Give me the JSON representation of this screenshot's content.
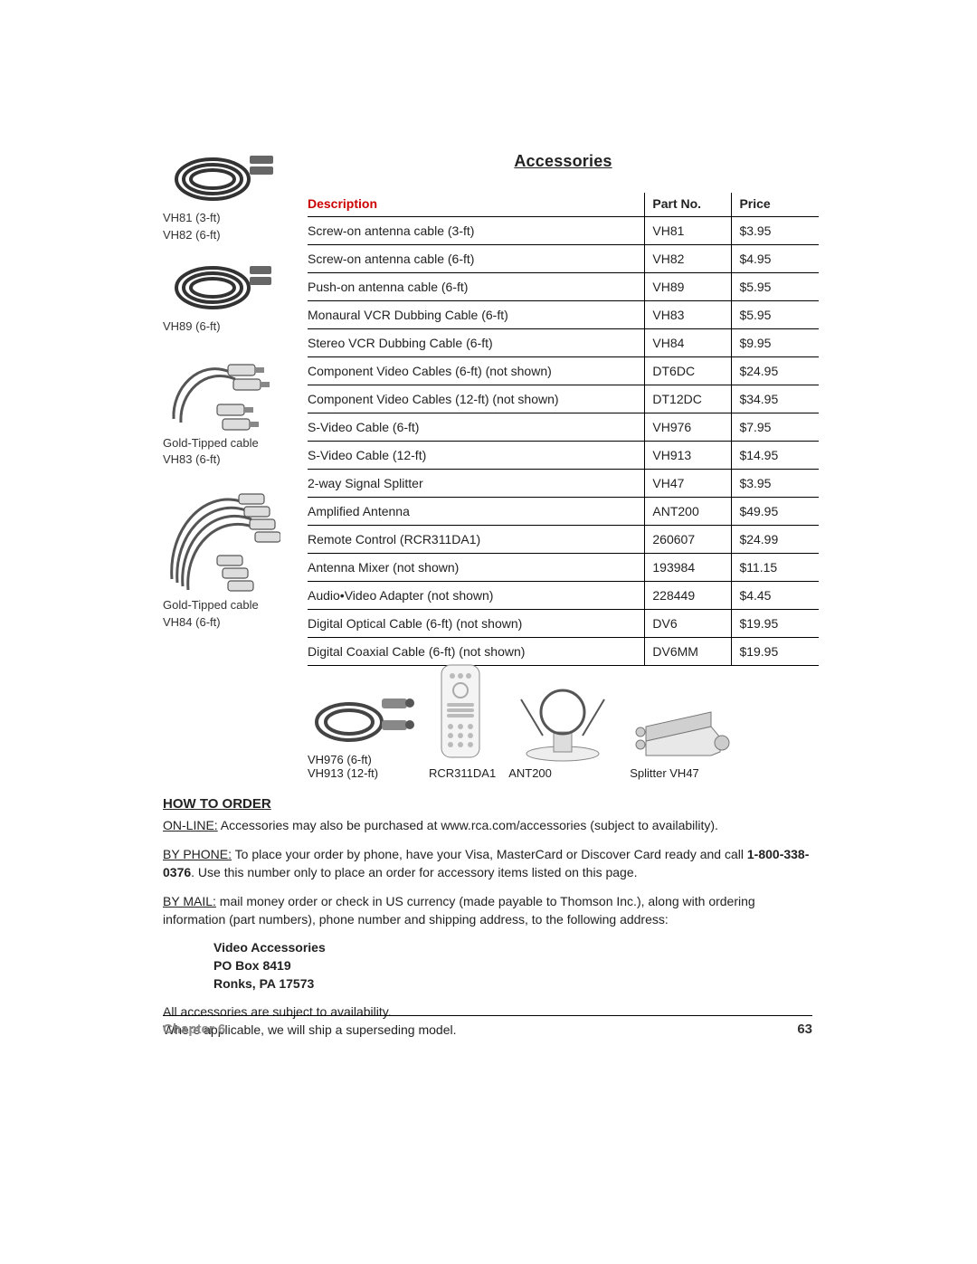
{
  "title": "Accessories",
  "table": {
    "headers": {
      "description": "Description",
      "partno": "Part No.",
      "price": "Price"
    },
    "rows": [
      {
        "desc": "Screw-on antenna cable (3-ft)",
        "pn": "VH81",
        "price": "$3.95"
      },
      {
        "desc": "Screw-on antenna cable (6-ft)",
        "pn": "VH82",
        "price": "$4.95"
      },
      {
        "desc": "Push-on antenna cable (6-ft)",
        "pn": "VH89",
        "price": "$5.95"
      },
      {
        "desc": "Monaural VCR Dubbing Cable (6-ft)",
        "pn": "VH83",
        "price": "$5.95"
      },
      {
        "desc": "Stereo VCR Dubbing Cable (6-ft)",
        "pn": "VH84",
        "price": "$9.95"
      },
      {
        "desc": "Component Video Cables (6-ft) (not shown)",
        "pn": "DT6DC",
        "price": "$24.95"
      },
      {
        "desc": "Component Video Cables (12-ft) (not shown)",
        "pn": "DT12DC",
        "price": "$34.95"
      },
      {
        "desc": "S-Video Cable (6-ft)",
        "pn": "VH976",
        "price": "$7.95"
      },
      {
        "desc": "S-Video Cable (12-ft)",
        "pn": "VH913",
        "price": "$14.95"
      },
      {
        "desc": "2-way Signal Splitter",
        "pn": "VH47",
        "price": "$3.95"
      },
      {
        "desc": "Amplified Antenna",
        "pn": "ANT200",
        "price": "$49.95"
      },
      {
        "desc": "Remote Control (RCR311DA1)",
        "pn": "260607",
        "price": "$24.99"
      },
      {
        "desc": "Antenna Mixer (not shown)",
        "pn": "193984",
        "price": "$11.15"
      },
      {
        "desc": "Audio•Video Adapter (not shown)",
        "pn": "228449",
        "price": "$4.45"
      },
      {
        "desc": "Digital Optical Cable (6-ft) (not shown)",
        "pn": "DV6",
        "price": "$19.95"
      },
      {
        "desc": "Digital Coaxial Cable (6-ft) (not shown)",
        "pn": "DV6MM",
        "price": "$19.95"
      }
    ]
  },
  "left_thumbs": [
    {
      "caption_lines": [
        "VH81 (3-ft)",
        "VH82 (6-ft)"
      ]
    },
    {
      "caption_lines": [
        "VH89 (6-ft)"
      ]
    },
    {
      "caption_lines": [
        "Gold-Tipped cable",
        "VH83 (6-ft)"
      ]
    },
    {
      "caption_lines": [
        "Gold-Tipped cable",
        "VH84 (6-ft)"
      ]
    }
  ],
  "bottom_thumbs": [
    {
      "caption_lines": [
        "VH976 (6-ft)",
        "VH913 (12-ft)"
      ]
    },
    {
      "caption_lines": [
        "RCR311DA1"
      ]
    },
    {
      "caption_lines": [
        "ANT200"
      ]
    },
    {
      "caption_lines": [
        "Splitter VH47"
      ]
    }
  ],
  "howto": {
    "heading": "HOW TO ORDER",
    "online_label": "ON-LINE:",
    "online_text": " Accessories may also be purchased at www.rca.com/accessories (subject to availability).",
    "phone_label": "BY PHONE:",
    "phone_text_1": " To place your order by phone, have your Visa, MasterCard or Discover Card ready and call ",
    "phone_number": "1-800-338-0376",
    "phone_text_2": ". Use this number only to place an order for accessory items listed on this page.",
    "mail_label": "BY MAIL:",
    "mail_text": " mail money order or check in US currency (made payable to Thomson Inc.), along with ordering information (part numbers), phone number and shipping address, to the following address:",
    "address": [
      "Video Accessories",
      "PO Box 8419",
      "Ronks, PA 17573"
    ],
    "note1": "All accessories are subject to availability.",
    "note2": "Where applicable, we will ship a superseding model."
  },
  "footer": {
    "chapter": "Chapter 6",
    "page": "63"
  },
  "colors": {
    "accent_red": "#c00",
    "rule": "#000000",
    "text": "#222222",
    "muted": "#888888"
  }
}
